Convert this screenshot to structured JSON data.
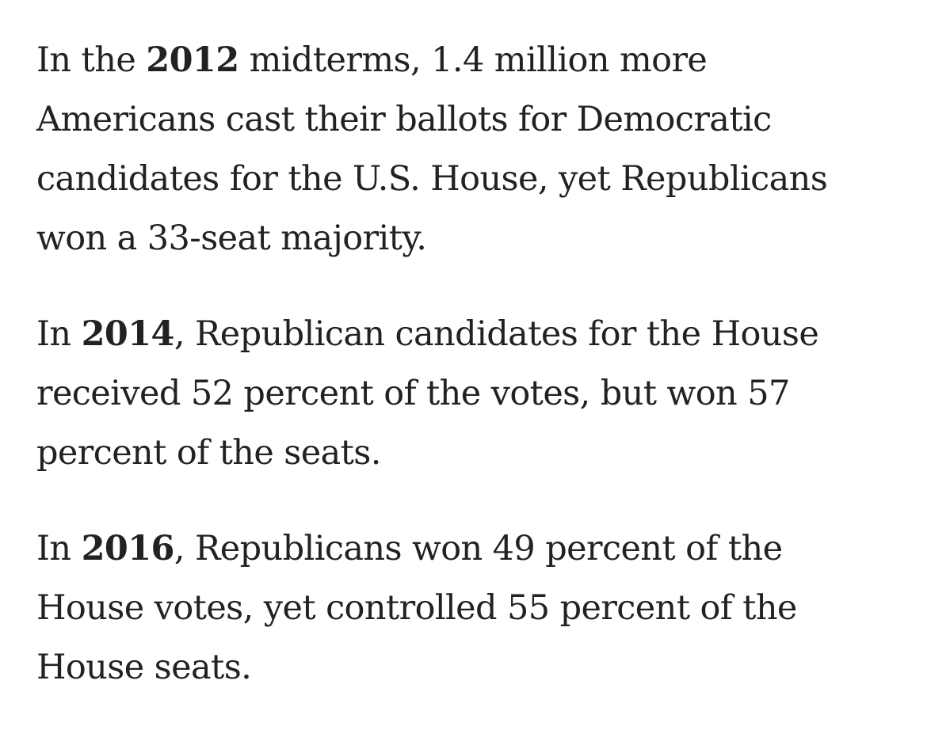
{
  "paragraphs": [
    {
      "year": "2012",
      "lines": [
        {
          "before": "In the ",
          "after": " midterms, 1.4 million more"
        },
        "Americans cast their ballots for Democratic",
        "candidates for the U.S. House, yet Republicans",
        "won a 33-seat majority."
      ]
    },
    {
      "year": "2014",
      "lines": [
        {
          "before": "In ",
          "after": ", Republican candidates for the House"
        },
        "received 52 percent of the votes, but won 57",
        "percent of the seats."
      ]
    },
    {
      "year": "2016",
      "lines": [
        {
          "before": "In ",
          "after": ", Republicans won 49 percent of the"
        },
        "House votes, yet controlled 55 percent of the",
        "House seats."
      ]
    }
  ]
}
